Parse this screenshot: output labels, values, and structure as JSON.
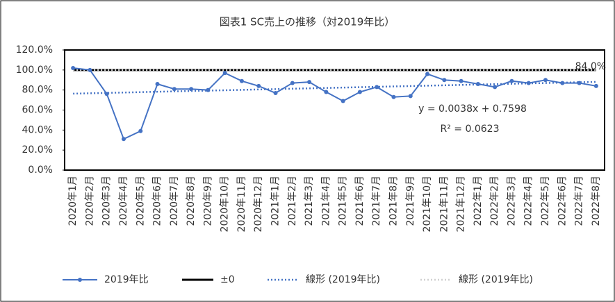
{
  "chart_data": {
    "type": "line",
    "title": "図表1 SC売上の推移（対2019年比）",
    "categories": [
      "2020年1月",
      "2020年2月",
      "2020年3月",
      "2020年4月",
      "2020年5月",
      "2020年6月",
      "2020年7月",
      "2020年8月",
      "2020年9月",
      "2020年10月",
      "2020年11月",
      "2020年12月",
      "2021年1月",
      "2021年2月",
      "2021年3月",
      "2021年4月",
      "2021年5月",
      "2021年6月",
      "2021年7月",
      "2021年8月",
      "2021年9月",
      "2021年10月",
      "2021年11月",
      "2021年12月",
      "2022年1月",
      "2022年2月",
      "2022年3月",
      "2022年4月",
      "2022年5月",
      "2022年6月",
      "2022年7月",
      "2022年8月"
    ],
    "series": [
      {
        "name": "2019年比",
        "color": "#4472c4",
        "style": "solid",
        "marker": true,
        "values": [
          102,
          100,
          76,
          31,
          39,
          86,
          81,
          81,
          80,
          97,
          89,
          84,
          77,
          87,
          88,
          78,
          69,
          78,
          83,
          73,
          74,
          96,
          90,
          89,
          86,
          83,
          89,
          87,
          90,
          87,
          87,
          84
        ],
        "value_labels": [
          null,
          null,
          null,
          null,
          null,
          null,
          null,
          null,
          null,
          null,
          null,
          null,
          null,
          null,
          null,
          null,
          null,
          null,
          null,
          null,
          null,
          null,
          null,
          null,
          null,
          null,
          null,
          null,
          null,
          null,
          null,
          "84.0%"
        ]
      },
      {
        "name": "±0",
        "color": "#000000",
        "style": "solid",
        "marker": false,
        "values": [
          100,
          100,
          100,
          100,
          100,
          100,
          100,
          100,
          100,
          100,
          100,
          100,
          100,
          100,
          100,
          100,
          100,
          100,
          100,
          100,
          100,
          100,
          100,
          100,
          100,
          100,
          100,
          100,
          100,
          100,
          100,
          100
        ]
      },
      {
        "name": "線形 (2019年比)",
        "color": "#4472c4",
        "style": "dotted",
        "marker": false,
        "values": [
          76.36,
          76.74,
          77.12,
          77.5,
          77.88,
          78.26,
          78.64,
          79.02,
          79.4,
          79.78,
          80.16,
          80.54,
          80.92,
          81.3,
          81.68,
          82.06,
          82.44,
          82.82,
          83.2,
          83.58,
          83.96,
          84.34,
          84.72,
          85.1,
          85.48,
          85.86,
          86.24,
          86.62,
          87.0,
          87.38,
          87.76,
          88.14
        ]
      },
      {
        "name": "線形 (2019年比)",
        "color": "#d0d0d0",
        "style": "dotted",
        "marker": false,
        "values": [
          100,
          100,
          100,
          100,
          100,
          100,
          100,
          100,
          100,
          100,
          100,
          100,
          100,
          100,
          100,
          100,
          100,
          100,
          100,
          100,
          100,
          100,
          100,
          100,
          100,
          100,
          100,
          100,
          100,
          100,
          100,
          100
        ]
      }
    ],
    "annotations": [
      "y = 0.0038x + 0.7598",
      "R² = 0.0623"
    ],
    "ylim": [
      0,
      120
    ],
    "yticks": [
      {
        "value": 0,
        "label": "0.0%"
      },
      {
        "value": 20,
        "label": "20.0%"
      },
      {
        "value": 40,
        "label": "40.0%"
      },
      {
        "value": 60,
        "label": "60.0%"
      },
      {
        "value": 80,
        "label": "80.0%"
      },
      {
        "value": 100,
        "label": "100.0%"
      },
      {
        "value": 120,
        "label": "120.0%"
      }
    ],
    "grid": false,
    "legend": "bottom"
  }
}
